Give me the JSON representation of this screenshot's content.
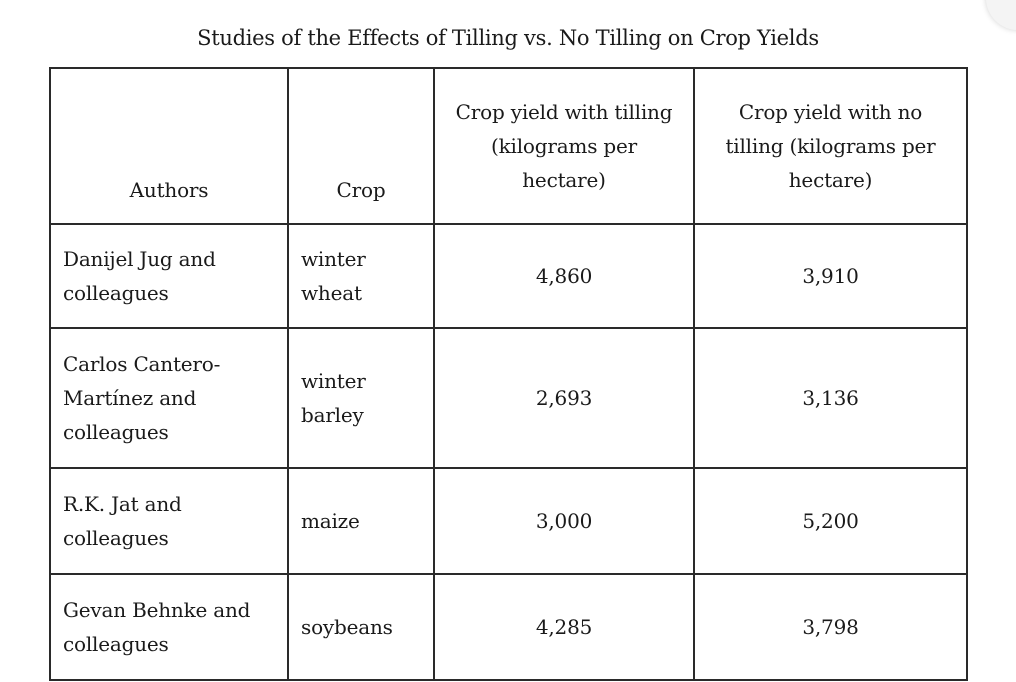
{
  "title": "Studies of the Effects of Tilling vs. No Tilling on Crop Yields",
  "table": {
    "headers": [
      "Authors",
      "Crop",
      "Crop yield with tilling (kilograms per hectare)",
      "Crop yield with no tilling (kilograms per hectare)"
    ],
    "rows": [
      {
        "authors": "Danijel Jug and colleagues",
        "crop": "winter wheat",
        "tilling": "4,860",
        "no_tilling": "3,910"
      },
      {
        "authors": "Carlos Cantero-Martínez and colleagues",
        "crop": "winter barley",
        "tilling": "2,693",
        "no_tilling": "3,136"
      },
      {
        "authors": "R.K. Jat and colleagues",
        "crop": "maize",
        "tilling": "3,000",
        "no_tilling": "5,200"
      },
      {
        "authors": "Gevan Behnke and colleagues",
        "crop": "soybeans",
        "tilling": "4,285",
        "no_tilling": "3,798"
      }
    ]
  }
}
